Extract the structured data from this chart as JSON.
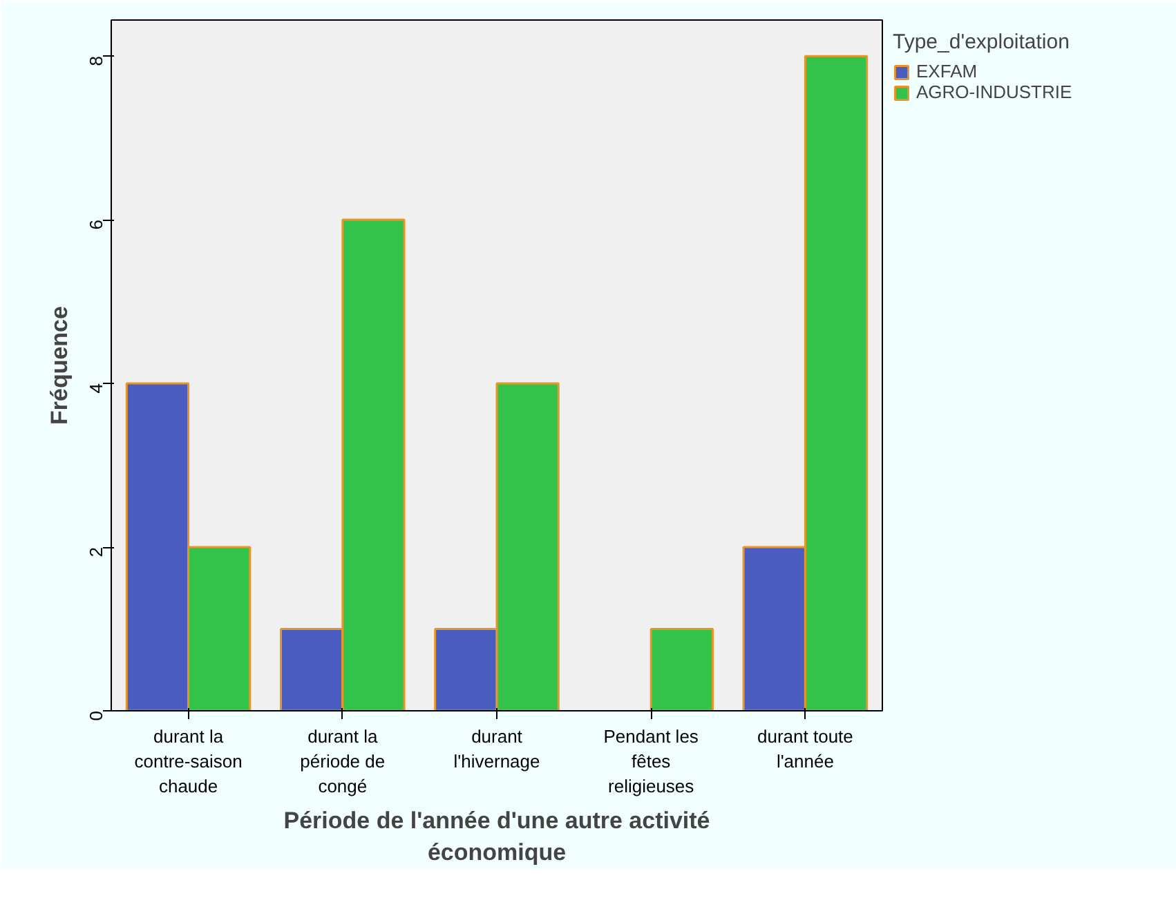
{
  "chart_data": {
    "type": "bar",
    "xlabel": "Période de l'année d'une autre activité\néconomique",
    "ylabel": "Fréquence",
    "legend_title": "Type_d'exploitation",
    "categories": [
      "durant la\ncontre-saison\nchaude",
      "durant la\npériode de\ncongé",
      "durant\nl'hivernage",
      "Pendant les\nfêtes\nreligieuses",
      "durant toute\nl'année"
    ],
    "series": [
      {
        "name": "EXFAM",
        "color": "#4a5cbf",
        "values": [
          4,
          1,
          1,
          null,
          2
        ]
      },
      {
        "name": "AGRO-INDUSTRIE",
        "color": "#33c24a",
        "values": [
          2,
          6,
          4,
          1,
          8
        ]
      }
    ],
    "ylim": [
      0,
      8.44
    ],
    "yticks": [
      0,
      2,
      4,
      6,
      8
    ],
    "grid": false,
    "legend": "right"
  }
}
